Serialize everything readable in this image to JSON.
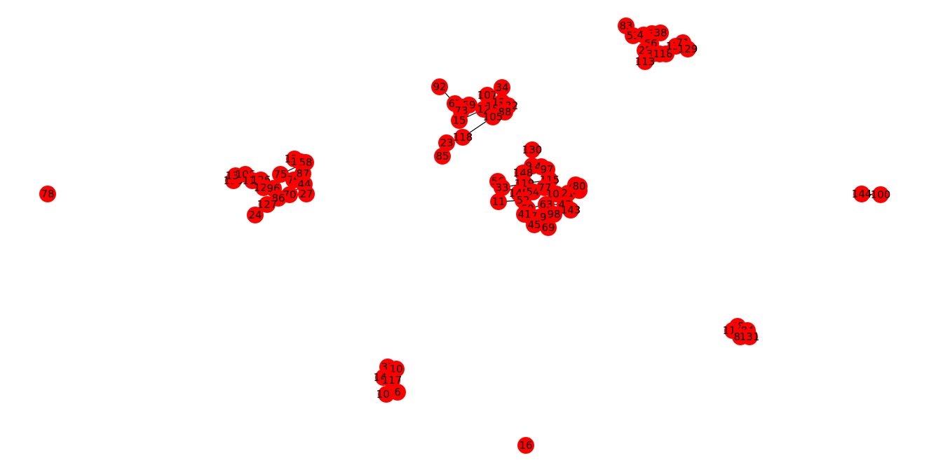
{
  "graph": {
    "node_color": "#ff0000",
    "label_color": "#000000",
    "edge_color": "#000000",
    "nodes": [
      {
        "id": "78"
      },
      {
        "id": "16"
      },
      {
        "id": "144"
      },
      {
        "id": "100"
      },
      {
        "id": "92"
      },
      {
        "id": "62"
      },
      {
        "id": "35"
      },
      {
        "id": "59"
      },
      {
        "id": "73"
      },
      {
        "id": "15"
      },
      {
        "id": "107"
      },
      {
        "id": "34"
      },
      {
        "id": "12"
      },
      {
        "id": "142"
      },
      {
        "id": "128"
      },
      {
        "id": "132"
      },
      {
        "id": "88"
      },
      {
        "id": "105"
      },
      {
        "id": "118"
      },
      {
        "id": "23"
      },
      {
        "id": "85"
      },
      {
        "id": "83"
      },
      {
        "id": "53"
      },
      {
        "id": "47"
      },
      {
        "id": "3"
      },
      {
        "id": "38"
      },
      {
        "id": "66"
      },
      {
        "id": "25"
      },
      {
        "id": "32"
      },
      {
        "id": "14"
      },
      {
        "id": "18"
      },
      {
        "id": "136"
      },
      {
        "id": "71"
      },
      {
        "id": "129"
      },
      {
        "id": "113"
      },
      {
        "id": "139"
      },
      {
        "id": "137"
      },
      {
        "id": "106"
      },
      {
        "id": "111"
      },
      {
        "id": "126"
      },
      {
        "id": "124"
      },
      {
        "id": "96"
      },
      {
        "id": "75"
      },
      {
        "id": "138"
      },
      {
        "id": "125"
      },
      {
        "id": "58"
      },
      {
        "id": "76"
      },
      {
        "id": "49"
      },
      {
        "id": "87"
      },
      {
        "id": "44"
      },
      {
        "id": "70"
      },
      {
        "id": "27"
      },
      {
        "id": "86"
      },
      {
        "id": "127"
      },
      {
        "id": "24"
      },
      {
        "id": "130"
      },
      {
        "id": "94"
      },
      {
        "id": "42"
      },
      {
        "id": "97"
      },
      {
        "id": "148"
      },
      {
        "id": "56"
      },
      {
        "id": "33"
      },
      {
        "id": "119"
      },
      {
        "id": "115"
      },
      {
        "id": "145"
      },
      {
        "id": "54"
      },
      {
        "id": "77"
      },
      {
        "id": "102"
      },
      {
        "id": "21"
      },
      {
        "id": "20"
      },
      {
        "id": "46"
      },
      {
        "id": "80"
      },
      {
        "id": "11"
      },
      {
        "id": "52"
      },
      {
        "id": "60"
      },
      {
        "id": "63"
      },
      {
        "id": "43"
      },
      {
        "id": "143"
      },
      {
        "id": "98"
      },
      {
        "id": "39"
      },
      {
        "id": "57"
      },
      {
        "id": "41"
      },
      {
        "id": "45"
      },
      {
        "id": "69"
      },
      {
        "id": "68"
      },
      {
        "id": "114"
      },
      {
        "id": "84"
      },
      {
        "id": "81"
      },
      {
        "id": "131"
      },
      {
        "id": "31"
      },
      {
        "id": "10"
      },
      {
        "id": "140"
      },
      {
        "id": "117"
      },
      {
        "id": "101"
      },
      {
        "id": "6"
      }
    ],
    "edges": [
      [
        "92",
        "62"
      ],
      [
        "62",
        "35"
      ],
      [
        "35",
        "59"
      ],
      [
        "59",
        "12"
      ],
      [
        "73",
        "15"
      ],
      [
        "15",
        "12"
      ],
      [
        "12",
        "105"
      ],
      [
        "107",
        "128"
      ],
      [
        "34",
        "128"
      ],
      [
        "128",
        "132"
      ],
      [
        "132",
        "88"
      ],
      [
        "142",
        "105"
      ],
      [
        "105",
        "118"
      ],
      [
        "118",
        "23"
      ],
      [
        "23",
        "85"
      ],
      [
        "12",
        "142"
      ],
      [
        "83",
        "53"
      ],
      [
        "53",
        "47"
      ],
      [
        "47",
        "3"
      ],
      [
        "3",
        "38"
      ],
      [
        "66",
        "25"
      ],
      [
        "25",
        "32"
      ],
      [
        "32",
        "14"
      ],
      [
        "14",
        "18"
      ],
      [
        "18",
        "136"
      ],
      [
        "136",
        "71"
      ],
      [
        "71",
        "129"
      ],
      [
        "25",
        "113"
      ],
      [
        "139",
        "106"
      ],
      [
        "137",
        "111"
      ],
      [
        "111",
        "126"
      ],
      [
        "126",
        "124"
      ],
      [
        "124",
        "96"
      ],
      [
        "96",
        "75"
      ],
      [
        "75",
        "58"
      ],
      [
        "138",
        "125"
      ],
      [
        "125",
        "58"
      ],
      [
        "58",
        "49"
      ],
      [
        "49",
        "87"
      ],
      [
        "87",
        "44"
      ],
      [
        "44",
        "70"
      ],
      [
        "70",
        "27"
      ],
      [
        "86",
        "127"
      ],
      [
        "127",
        "24"
      ],
      [
        "76",
        "49"
      ],
      [
        "130",
        "94"
      ],
      [
        "94",
        "42"
      ],
      [
        "42",
        "97"
      ],
      [
        "97",
        "148"
      ],
      [
        "56",
        "33"
      ],
      [
        "33",
        "119"
      ],
      [
        "119",
        "115"
      ],
      [
        "115",
        "145"
      ],
      [
        "145",
        "54"
      ],
      [
        "54",
        "77"
      ],
      [
        "77",
        "102"
      ],
      [
        "102",
        "21"
      ],
      [
        "21",
        "20"
      ],
      [
        "20",
        "46"
      ],
      [
        "46",
        "80"
      ],
      [
        "11",
        "52"
      ],
      [
        "52",
        "60"
      ],
      [
        "60",
        "63"
      ],
      [
        "63",
        "43"
      ],
      [
        "43",
        "143"
      ],
      [
        "143",
        "98"
      ],
      [
        "98",
        "39"
      ],
      [
        "39",
        "57"
      ],
      [
        "57",
        "41"
      ],
      [
        "41",
        "45"
      ],
      [
        "45",
        "69"
      ],
      [
        "148",
        "119"
      ],
      [
        "54",
        "52"
      ],
      [
        "68",
        "114"
      ],
      [
        "114",
        "84"
      ],
      [
        "84",
        "81"
      ],
      [
        "81",
        "131"
      ],
      [
        "31",
        "10"
      ],
      [
        "10",
        "140"
      ],
      [
        "140",
        "117"
      ],
      [
        "117",
        "101"
      ],
      [
        "101",
        "6"
      ],
      [
        "144",
        "100"
      ]
    ]
  }
}
